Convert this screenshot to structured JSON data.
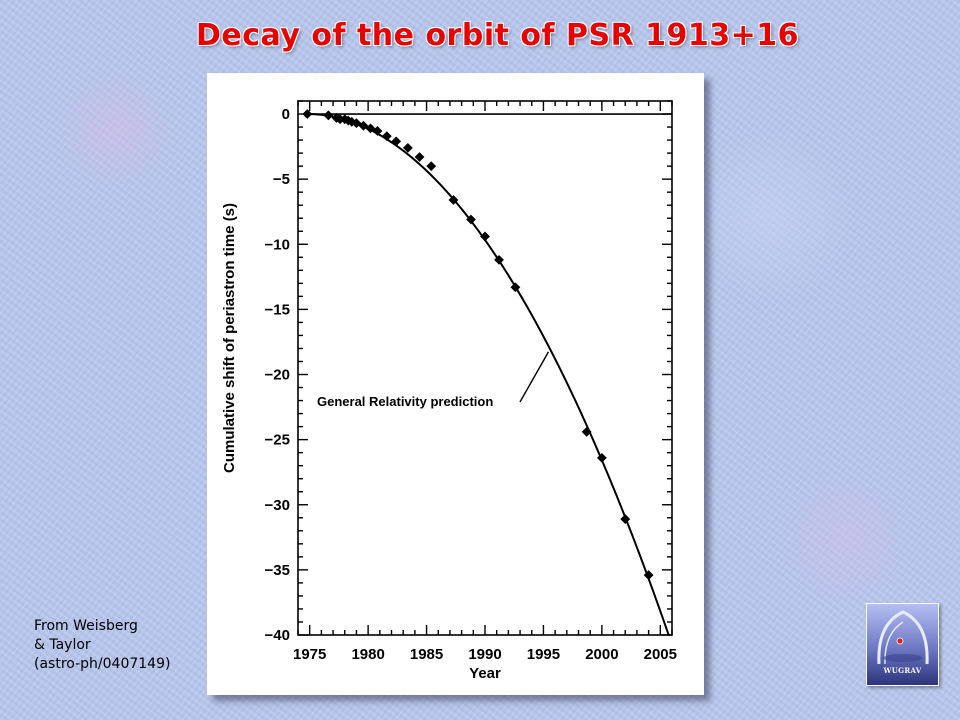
{
  "slide": {
    "title": "Decay of the orbit of PSR 1913+16",
    "credit_lines": [
      "From Weisberg",
      "& Taylor",
      "(astro-ph/0407149)"
    ],
    "logo_text": "WUGRAV",
    "title_color": "#e60000"
  },
  "chart_data": {
    "type": "scatter",
    "title": "",
    "xlabel": "Year",
    "ylabel": "Cumulative shift of periastron time (s)",
    "xlim": [
      1974,
      2006
    ],
    "ylim": [
      -40,
      1
    ],
    "x_ticks": [
      1975,
      1980,
      1985,
      1990,
      1995,
      2000,
      2005
    ],
    "y_ticks": [
      0,
      -5,
      -10,
      -15,
      -20,
      -25,
      -30,
      -35,
      -40
    ],
    "x_tick_labels": [
      "1975",
      "1980",
      "1985",
      "1990",
      "1995",
      "2000",
      "2005"
    ],
    "y_tick_labels": [
      "0",
      "−5",
      "−10",
      "−15",
      "−20",
      "−25",
      "−30",
      "−35",
      "−40"
    ],
    "grid": false,
    "reference_line": {
      "y": 0,
      "label": ""
    },
    "annotation": {
      "text": "General Relativity prediction",
      "points_to_x": 1995.6
    },
    "series": [
      {
        "type": "line",
        "curve": "quadratic",
        "t0": 1974.8,
        "coefficient": -0.04185,
        "x_range": [
          1974.8,
          2005.8
        ]
      },
      {
        "type": "scatter",
        "x": [
          1974.8,
          1976.6,
          1977.3,
          1977.6,
          1978.0,
          1978.3,
          1978.6,
          1979.0,
          1979.6,
          1980.2,
          1980.8,
          1981.6,
          1982.4,
          1983.4,
          1984.4,
          1985.4,
          1987.3,
          1988.8,
          1990.0,
          1991.2,
          1992.6,
          1998.7,
          2000.0,
          2002.0,
          2004.0
        ],
        "y": [
          0.0,
          -0.1,
          -0.3,
          -0.4,
          -0.4,
          -0.5,
          -0.6,
          -0.7,
          -0.9,
          -1.1,
          -1.3,
          -1.7,
          -2.1,
          -2.6,
          -3.3,
          -4.0,
          -6.6,
          -8.1,
          -9.4,
          -11.2,
          -13.3,
          -24.4,
          -26.4,
          -31.1,
          -35.4
        ]
      }
    ]
  }
}
